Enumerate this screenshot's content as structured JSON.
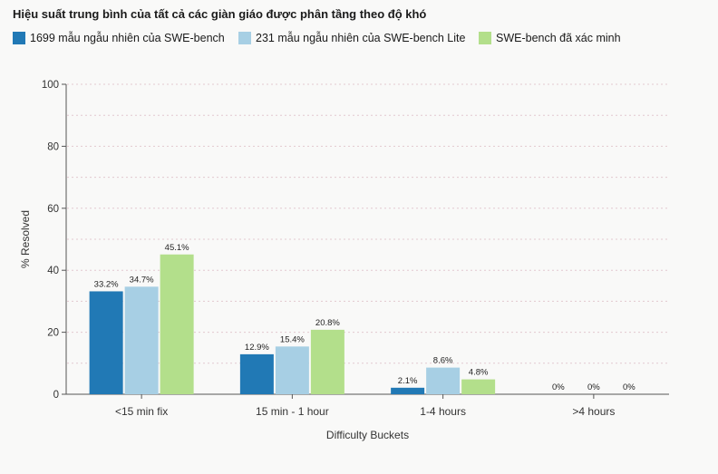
{
  "chart_data": {
    "type": "bar",
    "title": "Hiệu suất trung bình của tất cả các giàn giáo được phân tầng theo độ khó",
    "xlabel": "Difficulty Buckets",
    "ylabel": "% Resolved",
    "ylim": [
      0,
      100
    ],
    "yticks": [
      0,
      20,
      40,
      60,
      80,
      100
    ],
    "grid": true,
    "legend_position": "top-left",
    "categories": [
      "<15 min fix",
      "15 min - 1 hour",
      "1-4 hours",
      ">4 hours"
    ],
    "series": [
      {
        "name": "1699 mẫu ngẫu nhiên của SWE-bench",
        "color": "#2179b5",
        "values": [
          33.2,
          12.9,
          2.1,
          0
        ],
        "labels": [
          "33.2%",
          "12.9%",
          "2.1%",
          "0%"
        ]
      },
      {
        "name": "231 mẫu ngẫu nhiên của SWE-bench Lite",
        "color": "#a7cfe4",
        "values": [
          34.7,
          15.4,
          8.6,
          0
        ],
        "labels": [
          "34.7%",
          "15.4%",
          "8.6%",
          "0%"
        ]
      },
      {
        "name": "SWE-bench đã xác minh",
        "color": "#b3df8b",
        "values": [
          45.1,
          20.8,
          4.8,
          0
        ],
        "labels": [
          "45.1%",
          "20.8%",
          "4.8%",
          "0%"
        ]
      }
    ]
  }
}
